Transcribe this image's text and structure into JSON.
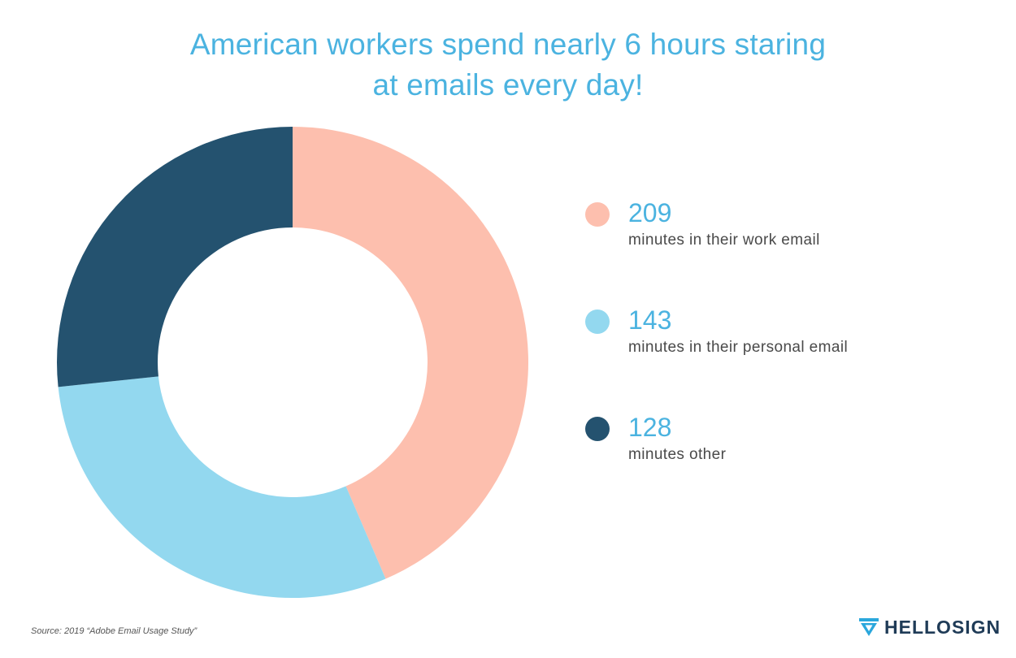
{
  "chart_data": {
    "type": "pie",
    "title": "American workers spend nearly 6 hours staring at emails every day!",
    "title_lines": [
      "American workers spend nearly 6 hours staring",
      "at emails every day!"
    ],
    "donut": true,
    "legend_position": "right",
    "slices": [
      {
        "value": 209,
        "label": "minutes in their work email",
        "color": "#fdbfae"
      },
      {
        "value": 143,
        "label": "minutes in their personal email",
        "color": "#93d8ef"
      },
      {
        "value": 128,
        "label": "minutes other",
        "color": "#24526f"
      }
    ]
  },
  "footer": {
    "source": "Source: 2019 “Adobe Email Usage Study”",
    "brand": "HELLOSIGN"
  },
  "colors": {
    "title": "#4bb3e0",
    "brand": "#1f3b57",
    "brand_icon": "#2aa7dc"
  }
}
